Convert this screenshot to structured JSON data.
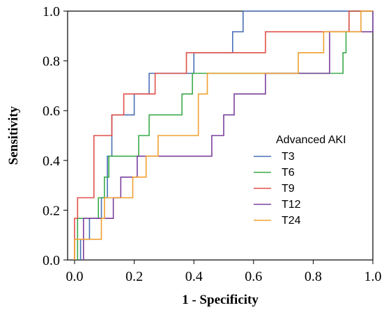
{
  "chart_data": {
    "type": "line",
    "title": "",
    "xlabel": "1 - Specificity",
    "ylabel": "Sensitivity",
    "xlim": [
      0,
      1
    ],
    "ylim": [
      0,
      1
    ],
    "x_ticks": [
      "0.0",
      "0.2",
      "0.4",
      "0.6",
      "0.8",
      "1.0"
    ],
    "y_ticks": [
      "0.0",
      "0.2",
      "0.4",
      "0.6",
      "0.8",
      "1.0"
    ],
    "grid": false,
    "legend_title": "Advanced AKI",
    "legend_position": "center-right",
    "series": [
      {
        "name": "T3",
        "color": "#4a6fb5",
        "points": [
          [
            0.02,
            0
          ],
          [
            0.02,
            0.083
          ],
          [
            0.05,
            0.083
          ],
          [
            0.05,
            0.167
          ],
          [
            0.09,
            0.167
          ],
          [
            0.09,
            0.25
          ],
          [
            0.11,
            0.25
          ],
          [
            0.11,
            0.417
          ],
          [
            0.125,
            0.417
          ],
          [
            0.125,
            0.583
          ],
          [
            0.2,
            0.583
          ],
          [
            0.2,
            0.667
          ],
          [
            0.25,
            0.667
          ],
          [
            0.25,
            0.75
          ],
          [
            0.4,
            0.75
          ],
          [
            0.4,
            0.833
          ],
          [
            0.53,
            0.833
          ],
          [
            0.53,
            0.917
          ],
          [
            0.565,
            0.917
          ],
          [
            0.565,
            1.0
          ],
          [
            1.0,
            1.0
          ]
        ]
      },
      {
        "name": "T6",
        "color": "#3aaa4a",
        "points": [
          [
            0.01,
            0
          ],
          [
            0.01,
            0.167
          ],
          [
            0.08,
            0.167
          ],
          [
            0.08,
            0.25
          ],
          [
            0.1,
            0.25
          ],
          [
            0.1,
            0.333
          ],
          [
            0.115,
            0.333
          ],
          [
            0.115,
            0.417
          ],
          [
            0.215,
            0.417
          ],
          [
            0.215,
            0.5
          ],
          [
            0.25,
            0.5
          ],
          [
            0.25,
            0.583
          ],
          [
            0.36,
            0.583
          ],
          [
            0.36,
            0.667
          ],
          [
            0.395,
            0.667
          ],
          [
            0.395,
            0.75
          ],
          [
            0.9,
            0.75
          ],
          [
            0.9,
            0.833
          ],
          [
            0.91,
            0.833
          ],
          [
            0.91,
            0.917
          ],
          [
            0.92,
            0.917
          ],
          [
            0.92,
            1.0
          ],
          [
            1.0,
            1.0
          ]
        ]
      },
      {
        "name": "T9",
        "color": "#e0504a",
        "points": [
          [
            0.0,
            0
          ],
          [
            0.0,
            0.167
          ],
          [
            0.01,
            0.167
          ],
          [
            0.01,
            0.25
          ],
          [
            0.065,
            0.25
          ],
          [
            0.065,
            0.5
          ],
          [
            0.125,
            0.5
          ],
          [
            0.125,
            0.583
          ],
          [
            0.165,
            0.583
          ],
          [
            0.165,
            0.667
          ],
          [
            0.27,
            0.667
          ],
          [
            0.27,
            0.75
          ],
          [
            0.33,
            0.75
          ],
          [
            0.33,
            0.75
          ],
          [
            0.375,
            0.75
          ],
          [
            0.375,
            0.833
          ],
          [
            0.64,
            0.833
          ],
          [
            0.64,
            0.917
          ],
          [
            0.92,
            0.917
          ],
          [
            0.92,
            1.0
          ],
          [
            1.0,
            1.0
          ]
        ]
      },
      {
        "name": "T12",
        "color": "#7b3f9e",
        "points": [
          [
            0.03,
            0
          ],
          [
            0.03,
            0.167
          ],
          [
            0.13,
            0.167
          ],
          [
            0.13,
            0.25
          ],
          [
            0.155,
            0.25
          ],
          [
            0.155,
            0.333
          ],
          [
            0.21,
            0.333
          ],
          [
            0.21,
            0.417
          ],
          [
            0.46,
            0.417
          ],
          [
            0.46,
            0.5
          ],
          [
            0.5,
            0.5
          ],
          [
            0.5,
            0.583
          ],
          [
            0.535,
            0.583
          ],
          [
            0.535,
            0.667
          ],
          [
            0.64,
            0.667
          ],
          [
            0.64,
            0.75
          ],
          [
            0.855,
            0.75
          ],
          [
            0.855,
            0.917
          ],
          [
            0.915,
            0.917
          ],
          [
            0.915,
            0.917
          ],
          [
            1.0,
            0.917
          ],
          [
            1.0,
            1.0
          ]
        ]
      },
      {
        "name": "T24",
        "color": "#f0a030",
        "points": [
          [
            0.0,
            0
          ],
          [
            0.0,
            0.083
          ],
          [
            0.09,
            0.083
          ],
          [
            0.09,
            0.167
          ],
          [
            0.1,
            0.167
          ],
          [
            0.1,
            0.25
          ],
          [
            0.195,
            0.25
          ],
          [
            0.195,
            0.333
          ],
          [
            0.24,
            0.333
          ],
          [
            0.24,
            0.417
          ],
          [
            0.28,
            0.417
          ],
          [
            0.28,
            0.5
          ],
          [
            0.415,
            0.5
          ],
          [
            0.415,
            0.667
          ],
          [
            0.445,
            0.667
          ],
          [
            0.445,
            0.75
          ],
          [
            0.75,
            0.75
          ],
          [
            0.75,
            0.833
          ],
          [
            0.835,
            0.833
          ],
          [
            0.835,
            0.917
          ],
          [
            0.96,
            0.917
          ],
          [
            0.96,
            1.0
          ],
          [
            1.0,
            1.0
          ]
        ]
      }
    ]
  }
}
